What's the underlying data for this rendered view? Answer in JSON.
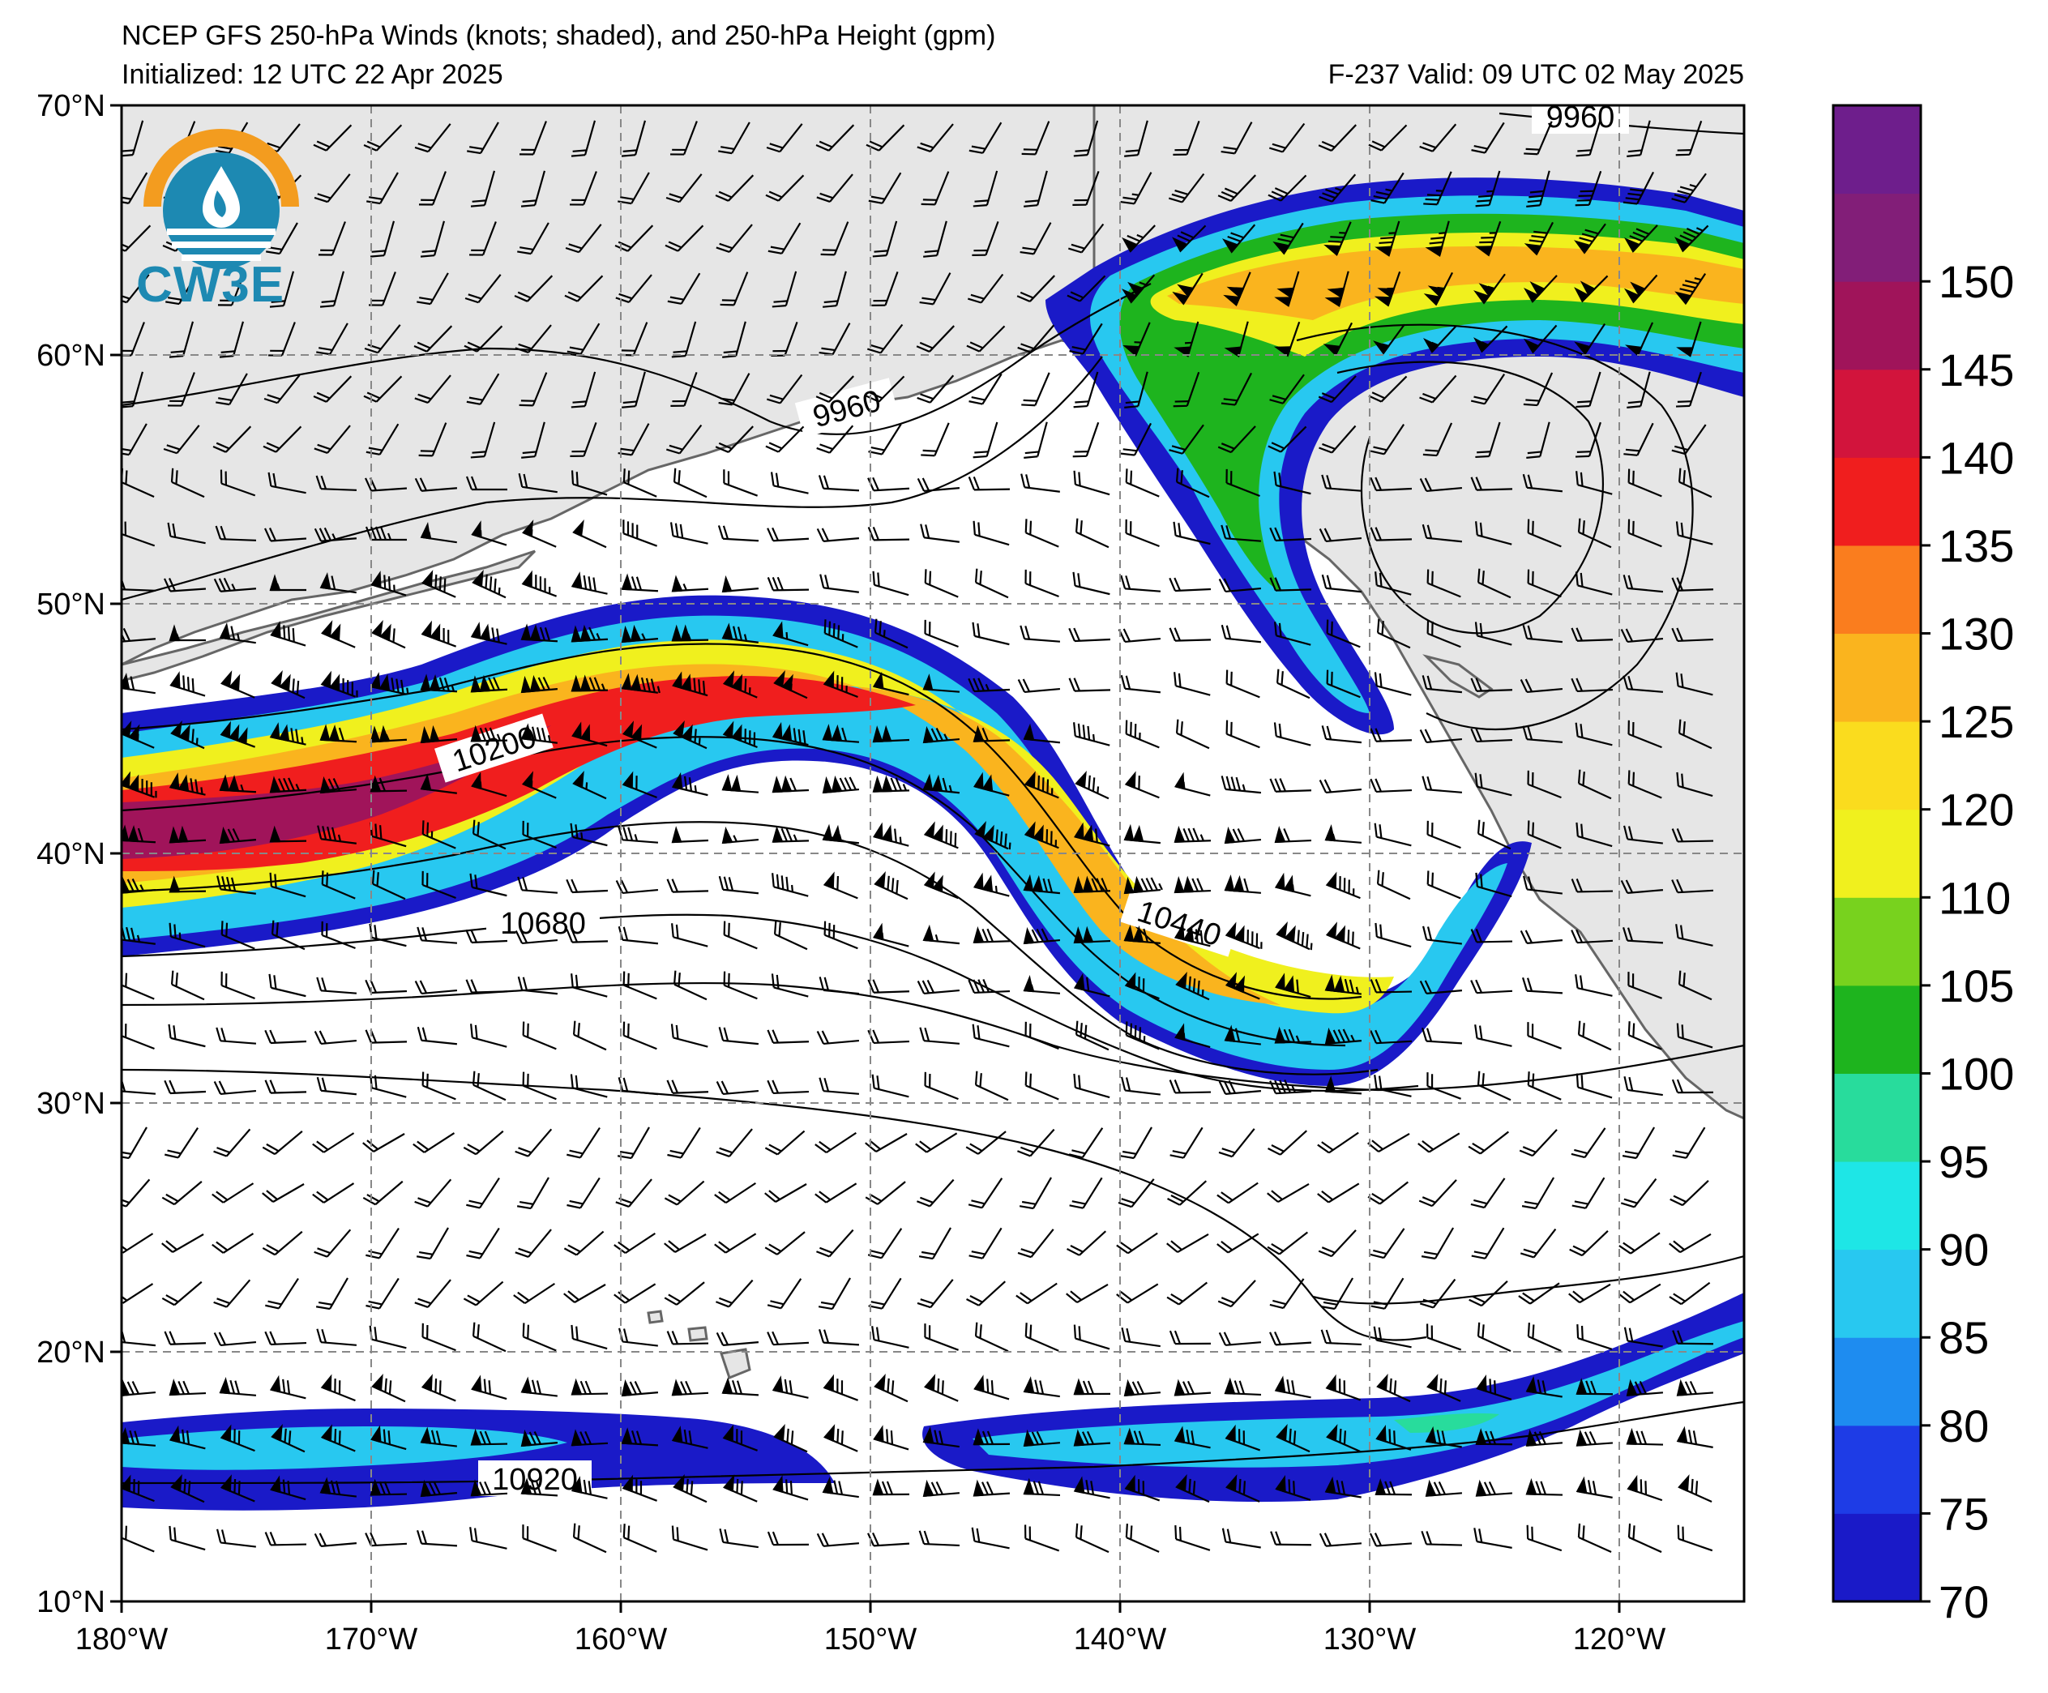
{
  "header": {
    "line1": "NCEP GFS 250-hPa Winds (knots; shaded), and 250-hPa Height (gpm)",
    "line2": "Initialized: 12 UTC 22 Apr 2025",
    "line3": "F-237  Valid: 09 UTC 02 May 2025"
  },
  "logo": {
    "text": "CW3E",
    "icon": "cw3e-water-drop-logo"
  },
  "map": {
    "lon_range": [
      -180,
      -115
    ],
    "lat_range": [
      10,
      70
    ],
    "x_ticks": [
      "180°W",
      "170°W",
      "160°W",
      "150°W",
      "140°W",
      "130°W",
      "120°W"
    ],
    "y_ticks": [
      "70°N",
      "60°N",
      "50°N",
      "40°N",
      "30°N",
      "20°N",
      "10°N"
    ],
    "grid": true,
    "land_color": "#e6e6e6",
    "contour_labels": [
      "9960",
      "9960",
      "10200",
      "10440",
      "10680",
      "10920"
    ]
  },
  "colorbar": {
    "labels": [
      "70",
      "75",
      "80",
      "85",
      "90",
      "95",
      "100",
      "105",
      "110",
      "120",
      "125",
      "130",
      "135",
      "140",
      "145",
      "150"
    ],
    "colors": [
      "#1a1ac8",
      "#1e3ce6",
      "#1e8cf0",
      "#28c8f0",
      "#1ee6e6",
      "#28dc9c",
      "#1eb41e",
      "#78d21e",
      "#f0f01e",
      "#fadc1e",
      "#fab41e",
      "#fa7d1e",
      "#f01e1e",
      "#d2143c",
      "#a0145a",
      "#821e78",
      "#6e1e8c"
    ]
  }
}
